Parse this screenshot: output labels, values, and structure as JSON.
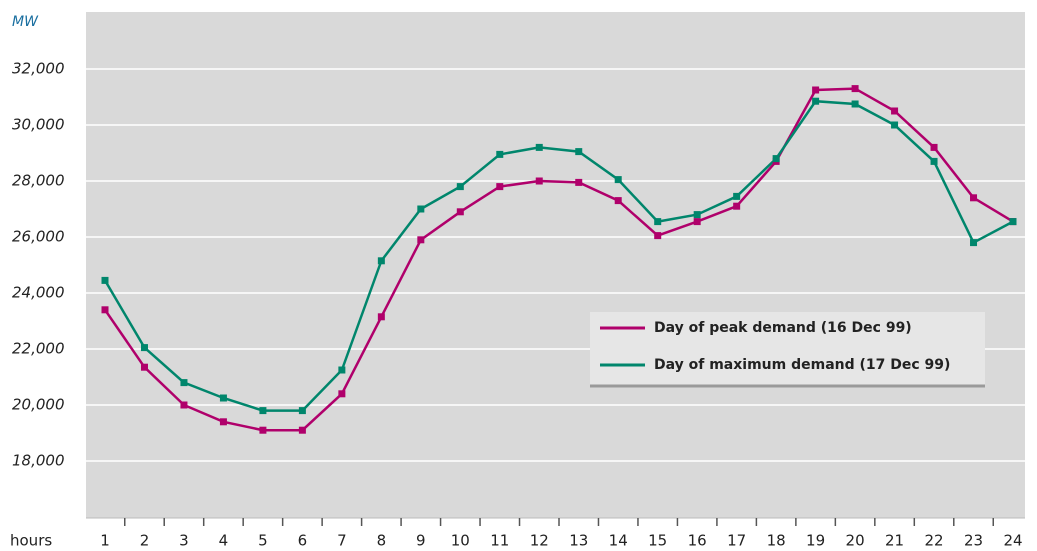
{
  "chart_data": {
    "type": "line",
    "y_label": "MW",
    "x_label": "hours",
    "categories": [
      "1",
      "2",
      "3",
      "4",
      "5",
      "6",
      "7",
      "8",
      "9",
      "10",
      "11",
      "12",
      "13",
      "14",
      "15",
      "16",
      "17",
      "18",
      "19",
      "20",
      "21",
      "22",
      "23",
      "24"
    ],
    "series": [
      {
        "name": "Day of peak demand (16 Dec 99)",
        "color": "#b0006b",
        "values": [
          23400,
          21350,
          20000,
          19400,
          19100,
          19100,
          20400,
          23150,
          25900,
          26900,
          27800,
          28000,
          27950,
          27300,
          26050,
          26550,
          27100,
          28700,
          31250,
          31300,
          30500,
          29200,
          27400,
          26550
        ]
      },
      {
        "name": "Day of maximum demand (17 Dec 99)",
        "color": "#00866c",
        "values": [
          24450,
          22050,
          20800,
          20250,
          19800,
          19800,
          21250,
          25150,
          27000,
          27800,
          28950,
          29200,
          29050,
          28050,
          26550,
          26800,
          27450,
          28800,
          30850,
          30750,
          30000,
          28700,
          25800,
          26550
        ]
      }
    ],
    "ylim": [
      16000,
      34000
    ],
    "yticks": [
      {
        "value": 18000,
        "label": "18,000"
      },
      {
        "value": 20000,
        "label": "20,000"
      },
      {
        "value": 22000,
        "label": "22,000"
      },
      {
        "value": 24000,
        "label": "24,000"
      },
      {
        "value": 26000,
        "label": "26,000"
      },
      {
        "value": 28000,
        "label": "28,000"
      },
      {
        "value": 30000,
        "label": "30,000"
      },
      {
        "value": 32000,
        "label": "32,000"
      }
    ],
    "grid": true
  }
}
